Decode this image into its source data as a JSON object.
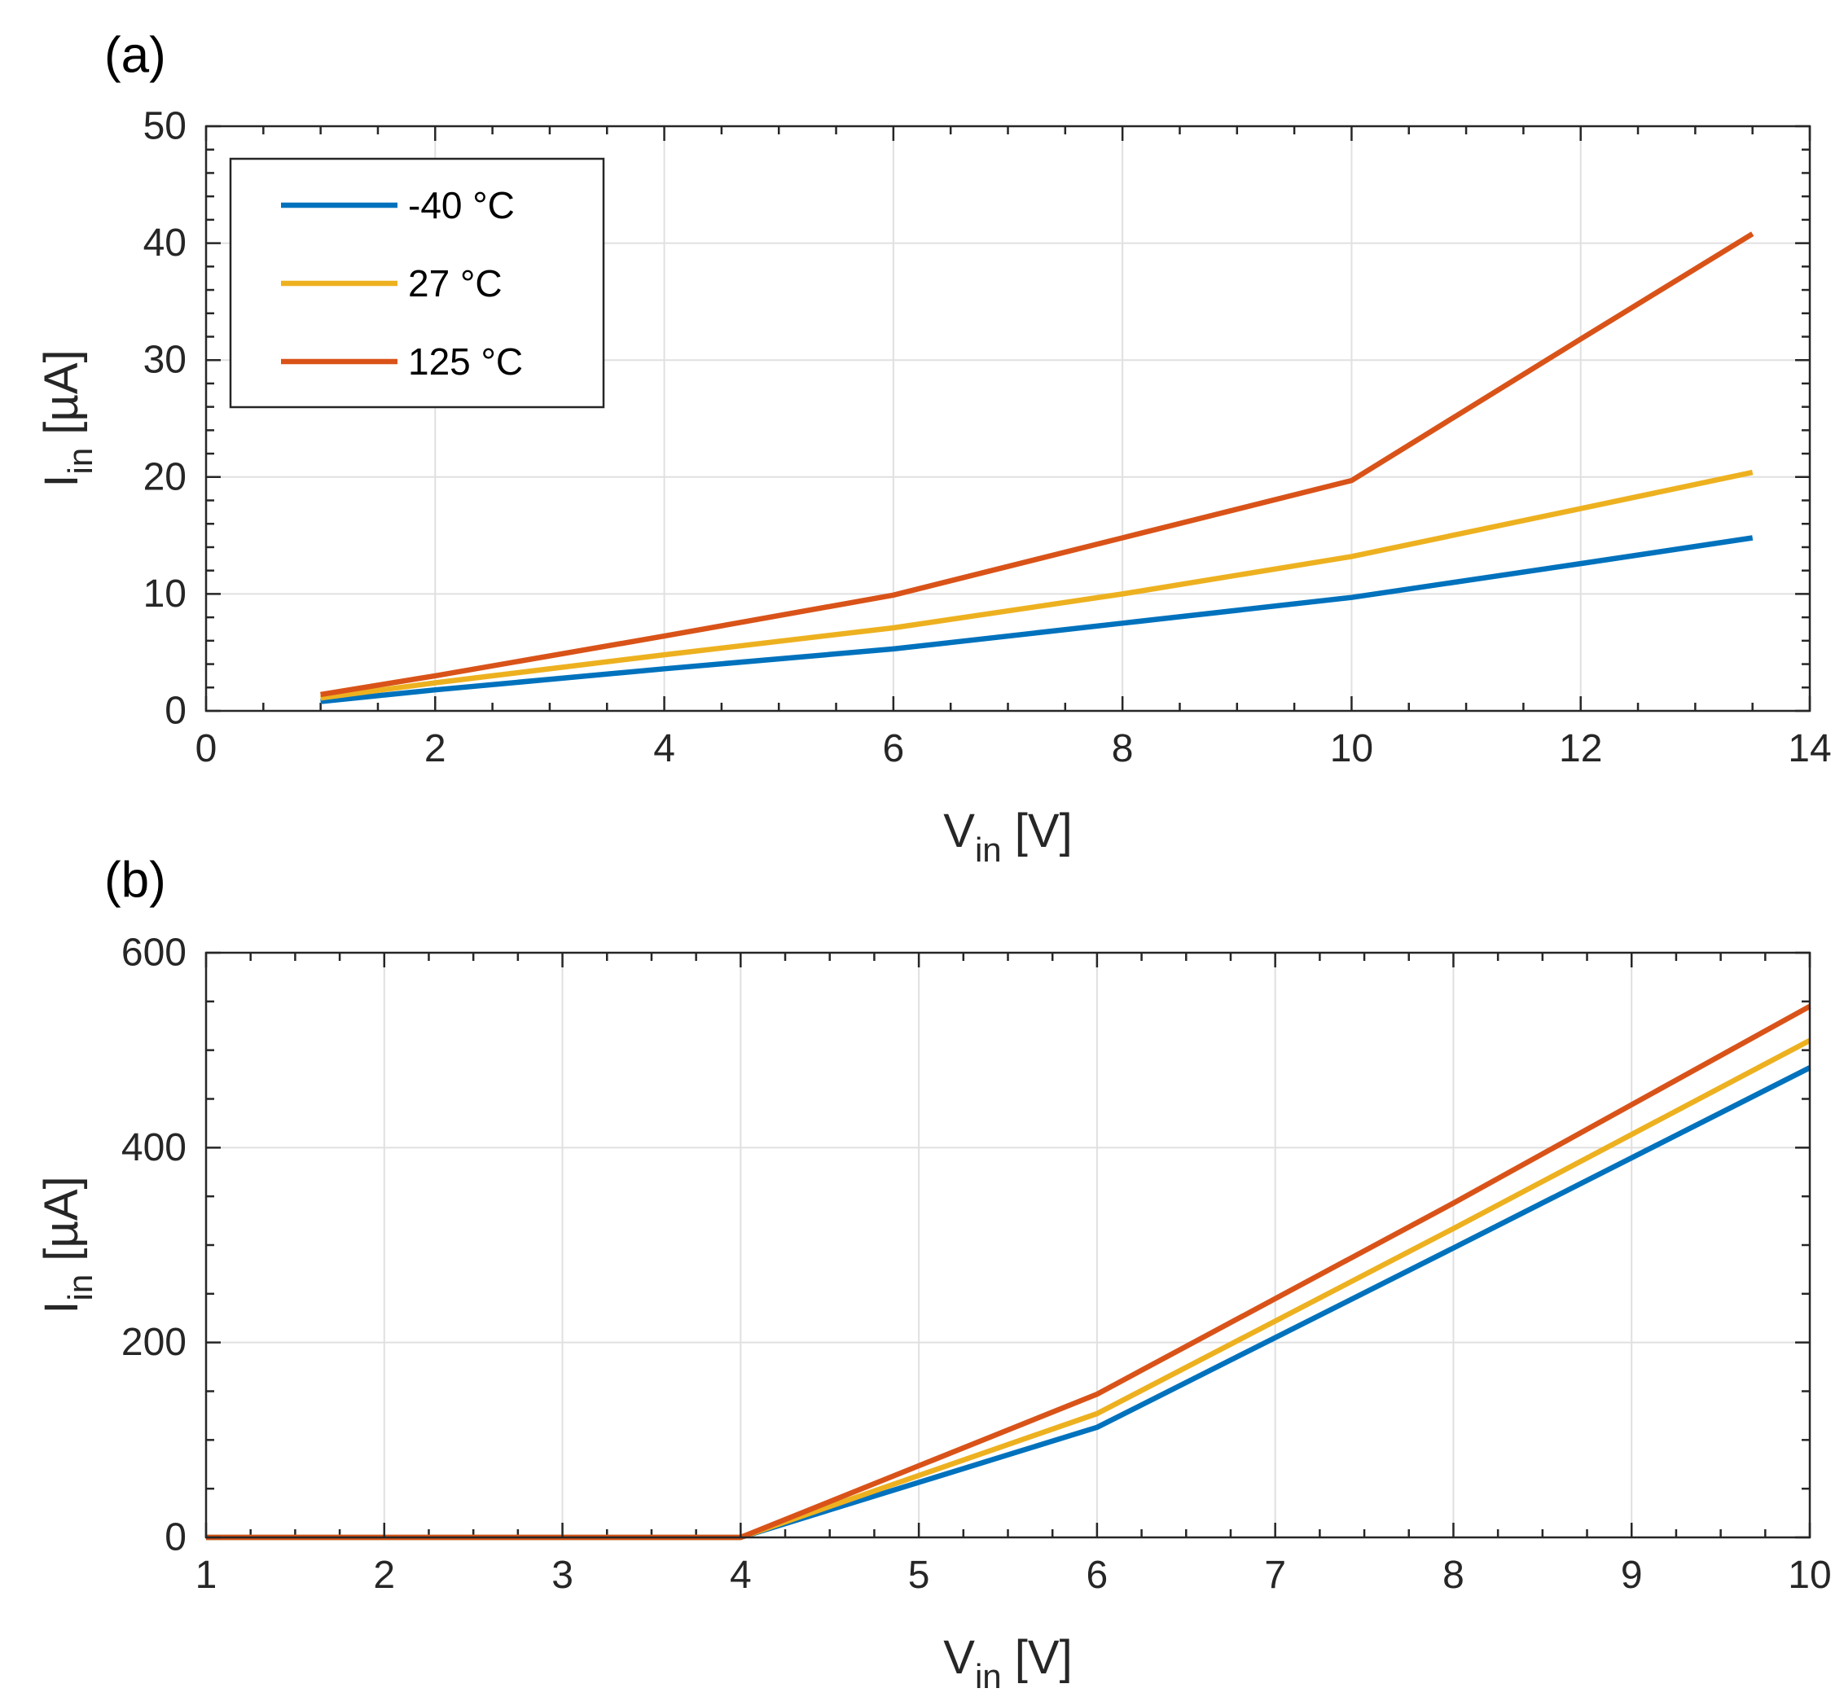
{
  "chart_data": [
    {
      "panel_label": "(a)",
      "type": "line",
      "xlabel": "V",
      "xlabel_sub": "in",
      "xlabel_unit": " [V]",
      "ylabel": "I",
      "ylabel_sub": "in",
      "ylabel_unit": " [µA]",
      "xlim": [
        0,
        14
      ],
      "ylim": [
        0,
        50
      ],
      "xticks": [
        0,
        2,
        4,
        6,
        8,
        10,
        12,
        14
      ],
      "yticks": [
        0,
        10,
        20,
        30,
        40,
        50
      ],
      "xtick_labels": [
        "0",
        "2",
        "4",
        "6",
        "8",
        "10",
        "12",
        "14"
      ],
      "ytick_labels": [
        "0",
        "10",
        "20",
        "30",
        "40",
        "50"
      ],
      "grid": true,
      "legend_position": "top-left",
      "series": [
        {
          "name": "-40 °C",
          "color": "#0072BD",
          "x": [
            1,
            2,
            4,
            6,
            8,
            10,
            12,
            13.5
          ],
          "values": [
            0.8,
            1.8,
            3.6,
            5.3,
            7.5,
            9.7,
            12.6,
            14.8
          ]
        },
        {
          "name": "27 °C",
          "color": "#EDB120",
          "x": [
            1,
            2,
            4,
            6,
            8,
            10,
            12,
            13.5
          ],
          "values": [
            1.1,
            2.4,
            4.8,
            7.1,
            10.0,
            13.2,
            17.3,
            20.4
          ]
        },
        {
          "name": "125 °C",
          "color": "#D95319",
          "x": [
            1,
            2,
            4,
            6,
            8,
            10,
            12,
            13.5
          ],
          "values": [
            1.4,
            3.0,
            6.4,
            9.9,
            14.8,
            19.7,
            31.8,
            40.8
          ]
        }
      ]
    },
    {
      "panel_label": "(b)",
      "type": "line",
      "xlabel": "V",
      "xlabel_sub": "in",
      "xlabel_unit": " [V]",
      "ylabel": "I",
      "ylabel_sub": "in",
      "ylabel_unit": " [µA]",
      "xlim": [
        1,
        10
      ],
      "ylim": [
        0,
        600
      ],
      "xticks": [
        1,
        2,
        3,
        4,
        5,
        6,
        7,
        8,
        9,
        10
      ],
      "yticks": [
        0,
        200,
        400,
        600
      ],
      "xtick_labels": [
        "1",
        "2",
        "3",
        "4",
        "5",
        "6",
        "7",
        "8",
        "9",
        "10"
      ],
      "ytick_labels": [
        "0",
        "200",
        "400",
        "600"
      ],
      "grid": true,
      "legend_position": "none",
      "series": [
        {
          "name": "-40 °C",
          "color": "#0072BD",
          "x": [
            1,
            2,
            3,
            4,
            6,
            8,
            10
          ],
          "values": [
            0,
            0,
            0,
            0,
            113,
            297,
            482
          ]
        },
        {
          "name": "27 °C",
          "color": "#EDB120",
          "x": [
            1,
            2,
            3,
            4,
            6,
            8,
            10
          ],
          "values": [
            0,
            0,
            0,
            0,
            127,
            317,
            510
          ]
        },
        {
          "name": "125 °C",
          "color": "#D95319",
          "x": [
            1,
            2,
            3,
            4,
            6,
            8,
            10
          ],
          "values": [
            0,
            0,
            0,
            0,
            147,
            343,
            545
          ]
        }
      ]
    }
  ]
}
